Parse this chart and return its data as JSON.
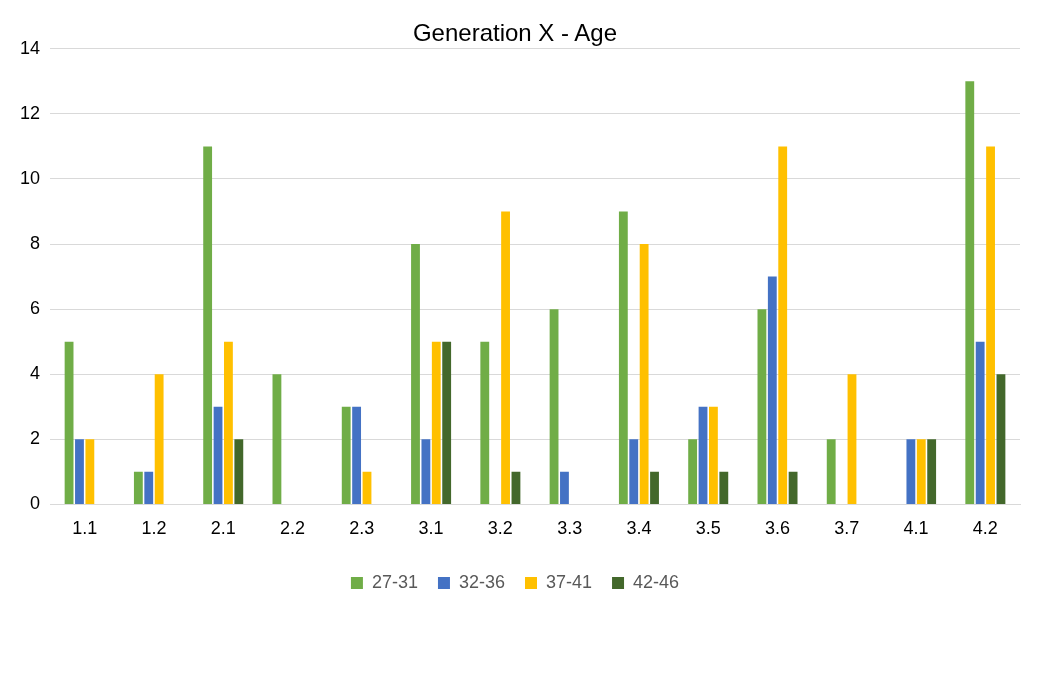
{
  "chart_data": {
    "type": "bar",
    "title": "Generation X - Age",
    "categories": [
      "1.1",
      "1.2",
      "2.1",
      "2.2",
      "2.3",
      "3.1",
      "3.2",
      "3.3",
      "3.4",
      "3.5",
      "3.6",
      "3.7",
      "4.1",
      "4.2"
    ],
    "series": [
      {
        "name": "27-31",
        "color": "#70ad47",
        "values": [
          5,
          1,
          11,
          4,
          3,
          8,
          5,
          6,
          9,
          2,
          6,
          2,
          0,
          13
        ]
      },
      {
        "name": "32-36",
        "color": "#4472c4",
        "values": [
          2,
          1,
          3,
          0,
          3,
          2,
          0,
          1,
          2,
          3,
          7,
          0,
          2,
          5
        ]
      },
      {
        "name": "37-41",
        "color": "#ffc000",
        "values": [
          2,
          4,
          5,
          0,
          1,
          5,
          9,
          0,
          8,
          3,
          11,
          4,
          2,
          11
        ]
      },
      {
        "name": "42-46",
        "color": "#43682b",
        "values": [
          0,
          0,
          2,
          0,
          0,
          5,
          1,
          0,
          1,
          1,
          1,
          0,
          2,
          4
        ]
      }
    ],
    "ylim": [
      0,
      14
    ],
    "yticks": [
      0,
      2,
      4,
      6,
      8,
      10,
      12,
      14
    ],
    "grid": "y",
    "legend": "bottom"
  }
}
